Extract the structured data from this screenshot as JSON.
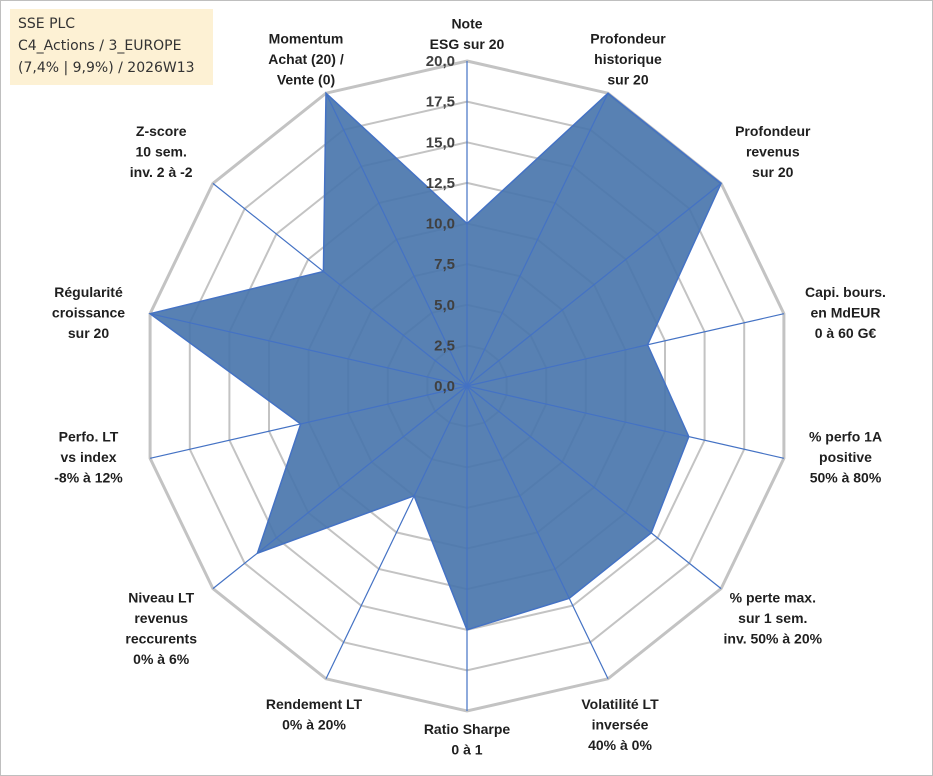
{
  "info": {
    "line1": "SSE PLC",
    "line2": "C4_Actions / 3_EUROPE",
    "line3": "(7,4% | 9,9%) / 2026W13"
  },
  "colors": {
    "fill": "#4a76ad",
    "outline": "#4472c4",
    "grid": "#c3c3c3",
    "spoke": "#4472c4",
    "infobox": "#fdf1d4"
  },
  "chart_data": {
    "type": "radar",
    "title": "",
    "rmin": 0,
    "rmax": 20,
    "tick_labels": [
      "0,0",
      "2,5",
      "5,0",
      "7,5",
      "10,0",
      "12,5",
      "15,0",
      "17,5",
      "20,0"
    ],
    "axes": [
      {
        "label": [
          "Note",
          "ESG sur 20"
        ],
        "value": 10.0
      },
      {
        "label": [
          "Profondeur",
          "historique",
          "sur 20"
        ],
        "value": 20.0
      },
      {
        "label": [
          "Profondeur",
          "revenus",
          "sur 20"
        ],
        "value": 20.0
      },
      {
        "label": [
          "Capi. bours.",
          "en MdEUR",
          "0 à 60 G€"
        ],
        "value": 11.4
      },
      {
        "label": [
          "% perfo 1A",
          "positive",
          "50% à 80%"
        ],
        "value": 14.0
      },
      {
        "label": [
          "% perte max.",
          "sur 1 sem.",
          "inv. 50% à 20%"
        ],
        "value": 14.5
      },
      {
        "label": [
          "Volatilité LT",
          "inversée",
          "40% à 0%"
        ],
        "value": 14.5
      },
      {
        "label": [
          "Ratio Sharpe",
          "0 à 1"
        ],
        "value": 15.0
      },
      {
        "label": [
          "Rendement LT",
          "0% à 20%"
        ],
        "value": 7.5
      },
      {
        "label": [
          "Niveau LT",
          "revenus",
          "reccurents",
          "0% à 6%"
        ],
        "value": 16.5
      },
      {
        "label": [
          "Perfo. LT",
          "vs index",
          "-8% à 12%"
        ],
        "value": 10.5
      },
      {
        "label": [
          "Régularité",
          "croissance",
          "sur 20"
        ],
        "value": 20.0
      },
      {
        "label": [
          "Z-score",
          "10 sem.",
          "inv. 2 à -2"
        ],
        "value": 11.3
      },
      {
        "label": [
          "Momentum",
          "Achat (20) /",
          "Vente (0)"
        ],
        "value": 20.0
      }
    ]
  }
}
